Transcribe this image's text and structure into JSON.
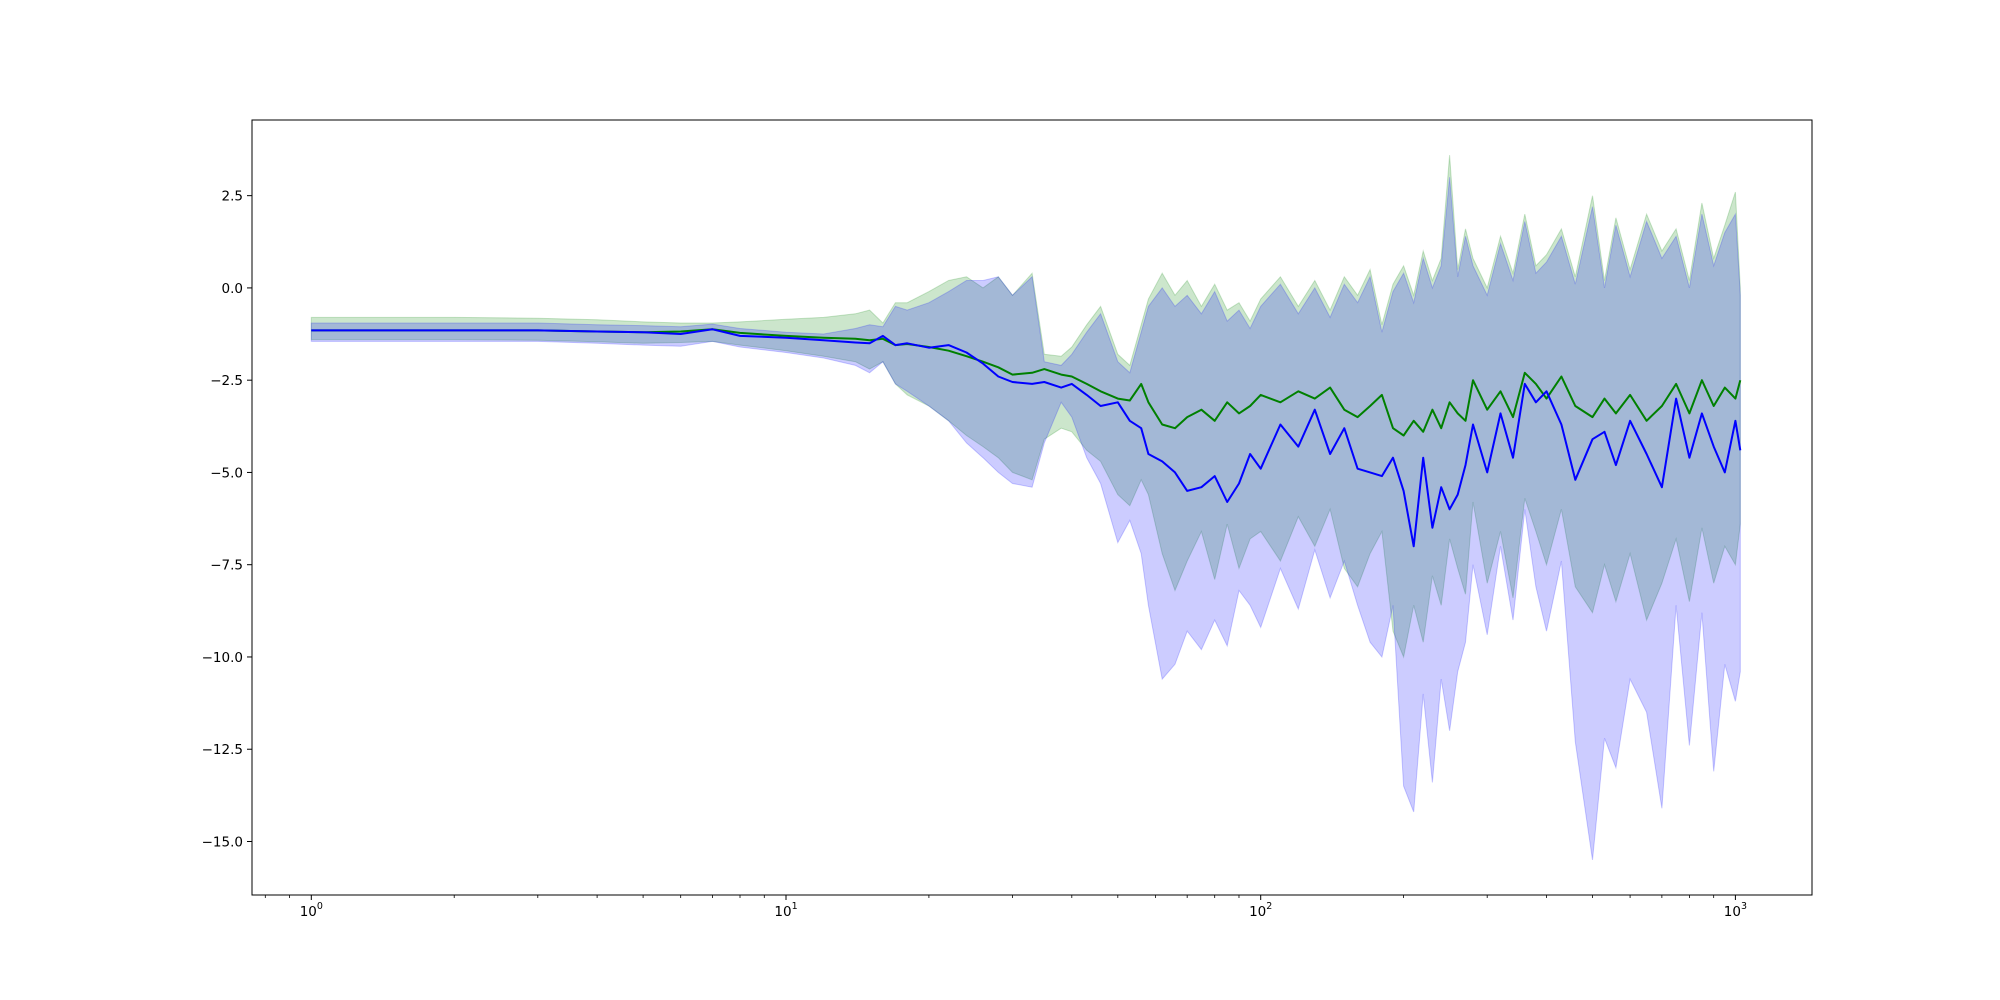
{
  "chart_data": {
    "type": "line",
    "title": "",
    "xlabel": "",
    "ylabel": "",
    "x_scale": "log",
    "xlim": [
      0.75,
      1450
    ],
    "ylim": [
      -16.45,
      4.55
    ],
    "x_ticks": [
      {
        "value": 1,
        "base": "10",
        "exp": "0"
      },
      {
        "value": 10,
        "base": "10",
        "exp": "1"
      },
      {
        "value": 100,
        "base": "10",
        "exp": "2"
      },
      {
        "value": 1000,
        "base": "10",
        "exp": "3"
      }
    ],
    "y_ticks": [
      {
        "value": 2.5,
        "label": "2.5"
      },
      {
        "value": 0.0,
        "label": "0.0"
      },
      {
        "value": -2.5,
        "label": "−2.5"
      },
      {
        "value": -5.0,
        "label": "−5.0"
      },
      {
        "value": -7.5,
        "label": "−7.5"
      },
      {
        "value": -10.0,
        "label": "−10.0"
      },
      {
        "value": -12.5,
        "label": "−12.5"
      },
      {
        "value": -15.0,
        "label": "−15.0"
      }
    ],
    "grid": false,
    "legend": "none",
    "x": [
      1,
      2,
      3,
      4,
      5,
      6,
      7,
      8,
      10,
      12,
      14,
      15,
      16,
      17,
      18,
      20,
      22,
      24,
      26,
      28,
      30,
      33,
      35,
      38,
      40,
      43,
      46,
      50,
      53,
      56,
      58,
      62,
      66,
      70,
      75,
      80,
      85,
      90,
      95,
      100,
      110,
      120,
      130,
      140,
      150,
      160,
      170,
      180,
      190,
      200,
      210,
      220,
      230,
      240,
      250,
      260,
      270,
      280,
      300,
      320,
      340,
      360,
      380,
      400,
      430,
      460,
      500,
      530,
      560,
      600,
      650,
      700,
      750,
      800,
      850,
      900,
      950,
      1000,
      1024
    ],
    "series": [
      {
        "color": "#008000",
        "fill": "rgba(0,128,0,0.2)",
        "mean": [
          -1.15,
          -1.15,
          -1.15,
          -1.18,
          -1.2,
          -1.18,
          -1.12,
          -1.22,
          -1.3,
          -1.35,
          -1.38,
          -1.42,
          -1.38,
          -1.55,
          -1.52,
          -1.6,
          -1.7,
          -1.85,
          -2.0,
          -2.15,
          -2.35,
          -2.3,
          -2.2,
          -2.35,
          -2.4,
          -2.6,
          -2.8,
          -3.0,
          -3.05,
          -2.6,
          -3.1,
          -3.7,
          -3.8,
          -3.5,
          -3.3,
          -3.6,
          -3.1,
          -3.4,
          -3.2,
          -2.9,
          -3.1,
          -2.8,
          -3.0,
          -2.7,
          -3.3,
          -3.5,
          -3.2,
          -2.9,
          -3.8,
          -4.0,
          -3.6,
          -3.9,
          -3.3,
          -3.8,
          -3.1,
          -3.4,
          -3.6,
          -2.5,
          -3.3,
          -2.8,
          -3.5,
          -2.3,
          -2.6,
          -3.0,
          -2.4,
          -3.2,
          -3.5,
          -3.0,
          -3.4,
          -2.9,
          -3.6,
          -3.2,
          -2.6,
          -3.4,
          -2.5,
          -3.2,
          -2.7,
          -3.0,
          -2.5
        ],
        "upper": [
          -0.8,
          -0.8,
          -0.82,
          -0.86,
          -0.92,
          -0.95,
          -0.95,
          -0.92,
          -0.85,
          -0.8,
          -0.7,
          -0.6,
          -0.95,
          -0.4,
          -0.4,
          -0.1,
          0.2,
          0.3,
          0.0,
          0.3,
          -0.2,
          0.4,
          -1.8,
          -1.85,
          -1.6,
          -1.0,
          -0.5,
          -1.8,
          -2.1,
          -1.0,
          -0.3,
          0.4,
          -0.2,
          0.2,
          -0.5,
          0.1,
          -0.6,
          -0.4,
          -0.9,
          -0.3,
          0.3,
          -0.5,
          0.2,
          -0.6,
          0.3,
          -0.2,
          0.5,
          -1.0,
          0.1,
          0.6,
          -0.2,
          1.0,
          0.2,
          0.8,
          3.6,
          0.5,
          1.6,
          0.8,
          0.0,
          1.4,
          0.4,
          2.0,
          0.6,
          0.9,
          1.6,
          0.3,
          2.5,
          0.2,
          1.9,
          0.5,
          2.0,
          1.0,
          1.6,
          0.2,
          2.3,
          0.8,
          1.7,
          2.6,
          0.0
        ],
        "lower": [
          -1.4,
          -1.4,
          -1.42,
          -1.46,
          -1.5,
          -1.48,
          -1.45,
          -1.55,
          -1.7,
          -1.85,
          -2.0,
          -2.2,
          -2.0,
          -2.6,
          -2.9,
          -3.2,
          -3.6,
          -4.0,
          -4.3,
          -4.6,
          -5.0,
          -5.2,
          -4.1,
          -3.8,
          -3.9,
          -4.4,
          -4.7,
          -5.6,
          -5.9,
          -5.2,
          -5.6,
          -7.2,
          -8.2,
          -7.4,
          -6.6,
          -7.9,
          -6.4,
          -7.6,
          -6.8,
          -6.6,
          -7.4,
          -6.2,
          -7.0,
          -6.0,
          -7.6,
          -8.1,
          -7.2,
          -6.6,
          -9.3,
          -10.0,
          -8.6,
          -9.6,
          -7.8,
          -8.6,
          -6.8,
          -7.6,
          -8.3,
          -5.8,
          -8.0,
          -6.6,
          -8.4,
          -5.7,
          -6.6,
          -7.5,
          -6.0,
          -8.1,
          -8.8,
          -7.5,
          -8.5,
          -7.2,
          -9.0,
          -8.0,
          -6.8,
          -8.5,
          -6.5,
          -8.0,
          -7.0,
          -7.5,
          -6.4
        ]
      },
      {
        "color": "#0000ff",
        "fill": "rgba(0,0,255,0.2)",
        "mean": [
          -1.15,
          -1.15,
          -1.15,
          -1.18,
          -1.2,
          -1.25,
          -1.12,
          -1.3,
          -1.35,
          -1.42,
          -1.48,
          -1.5,
          -1.3,
          -1.55,
          -1.5,
          -1.62,
          -1.55,
          -1.75,
          -2.05,
          -2.4,
          -2.55,
          -2.6,
          -2.55,
          -2.7,
          -2.6,
          -2.9,
          -3.2,
          -3.1,
          -3.6,
          -3.8,
          -4.5,
          -4.7,
          -5.0,
          -5.5,
          -5.4,
          -5.1,
          -5.8,
          -5.3,
          -4.5,
          -4.9,
          -3.7,
          -4.3,
          -3.3,
          -4.5,
          -3.8,
          -4.9,
          -5.0,
          -5.1,
          -4.6,
          -5.5,
          -7.0,
          -4.6,
          -6.5,
          -5.4,
          -6.0,
          -5.6,
          -4.8,
          -3.7,
          -5.0,
          -3.4,
          -4.6,
          -2.6,
          -3.1,
          -2.8,
          -3.7,
          -5.2,
          -4.1,
          -3.9,
          -4.8,
          -3.6,
          -4.5,
          -5.4,
          -3.0,
          -4.6,
          -3.4,
          -4.3,
          -5.0,
          -3.6,
          -4.4
        ],
        "upper": [
          -0.95,
          -0.95,
          -0.95,
          -1.0,
          -1.02,
          -1.05,
          -0.98,
          -1.1,
          -1.2,
          -1.25,
          -1.1,
          -1.0,
          -1.05,
          -0.5,
          -0.6,
          -0.4,
          -0.1,
          0.2,
          0.2,
          0.3,
          -0.2,
          0.3,
          -2.0,
          -2.1,
          -1.8,
          -1.2,
          -0.7,
          -2.0,
          -2.3,
          -1.2,
          -0.5,
          0.0,
          -0.5,
          -0.2,
          -0.7,
          -0.1,
          -0.9,
          -0.6,
          -1.1,
          -0.5,
          0.1,
          -0.7,
          0.0,
          -0.8,
          0.1,
          -0.4,
          0.3,
          -1.2,
          -0.1,
          0.4,
          -0.4,
          0.8,
          0.0,
          0.6,
          3.0,
          0.3,
          1.4,
          0.6,
          -0.2,
          1.2,
          0.2,
          1.8,
          0.4,
          0.7,
          1.4,
          0.1,
          2.2,
          0.0,
          1.7,
          0.3,
          1.8,
          0.8,
          1.4,
          0.0,
          2.0,
          0.6,
          1.5,
          2.0,
          -0.2
        ],
        "lower": [
          -1.45,
          -1.45,
          -1.45,
          -1.5,
          -1.55,
          -1.58,
          -1.45,
          -1.6,
          -1.75,
          -1.9,
          -2.1,
          -2.3,
          -2.0,
          -2.6,
          -2.8,
          -3.2,
          -3.6,
          -4.2,
          -4.6,
          -5.0,
          -5.3,
          -5.4,
          -4.2,
          -3.1,
          -3.5,
          -4.6,
          -5.3,
          -6.9,
          -6.3,
          -7.2,
          -8.6,
          -10.6,
          -10.2,
          -9.3,
          -9.8,
          -9.0,
          -9.7,
          -8.2,
          -8.6,
          -9.2,
          -7.6,
          -8.7,
          -7.1,
          -8.4,
          -7.4,
          -8.6,
          -9.6,
          -10.0,
          -8.6,
          -13.5,
          -14.2,
          -11.0,
          -13.4,
          -10.6,
          -12.0,
          -10.4,
          -9.6,
          -7.5,
          -9.4,
          -7.0,
          -9.0,
          -6.0,
          -8.1,
          -9.3,
          -7.4,
          -12.3,
          -15.5,
          -12.2,
          -13.0,
          -10.6,
          -11.5,
          -14.1,
          -8.6,
          -12.4,
          -8.8,
          -13.1,
          -10.2,
          -11.2,
          -10.4
        ]
      }
    ]
  }
}
